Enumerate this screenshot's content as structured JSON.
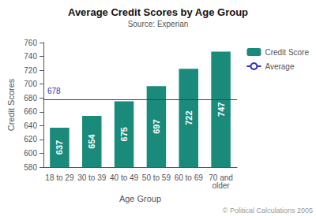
{
  "chart_data": {
    "type": "bar",
    "title": "Average Credit Scores by Age Group",
    "subtitle": "Source: Experian",
    "xlabel": "Age Group",
    "ylabel": "Credit Scores",
    "categories": [
      "18 to 29",
      "30 to 39",
      "40 to 49",
      "50 to 59",
      "60 to 69",
      "70 and\nolder"
    ],
    "series": [
      {
        "name": "Credit Score",
        "type": "bar",
        "color": "#1a8a7a",
        "values": [
          637,
          654,
          675,
          697,
          722,
          747
        ]
      }
    ],
    "reference_lines": [
      {
        "name": "Average",
        "value": 678,
        "color": "#3333bb"
      }
    ],
    "annotations": [
      "© Political Calculations 2005"
    ],
    "ylim": [
      580,
      760
    ],
    "yticks": [
      580,
      600,
      620,
      640,
      660,
      680,
      700,
      720,
      740,
      760
    ],
    "data_labels": true,
    "grid": false,
    "legend": "right"
  }
}
